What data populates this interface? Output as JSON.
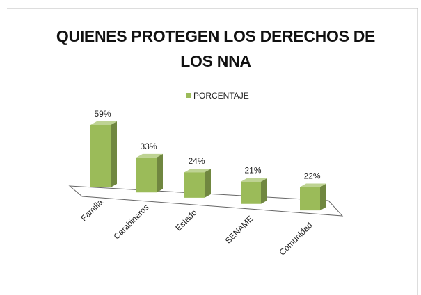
{
  "chart_data": {
    "type": "bar3d",
    "title": "QUIENES PROTEGEN LOS DERECHOS DE LOS NNA",
    "categories": [
      "Familia",
      "Carabineros",
      "Estado",
      "SENAME",
      "Comunidad"
    ],
    "series": [
      {
        "name": "PORCENTAJE",
        "color": "#9bbb59",
        "values": [
          59,
          33,
          24,
          21,
          22
        ],
        "value_labels": [
          "59%",
          "33%",
          "24%",
          "21%",
          "22%"
        ]
      }
    ],
    "legend": "top"
  }
}
